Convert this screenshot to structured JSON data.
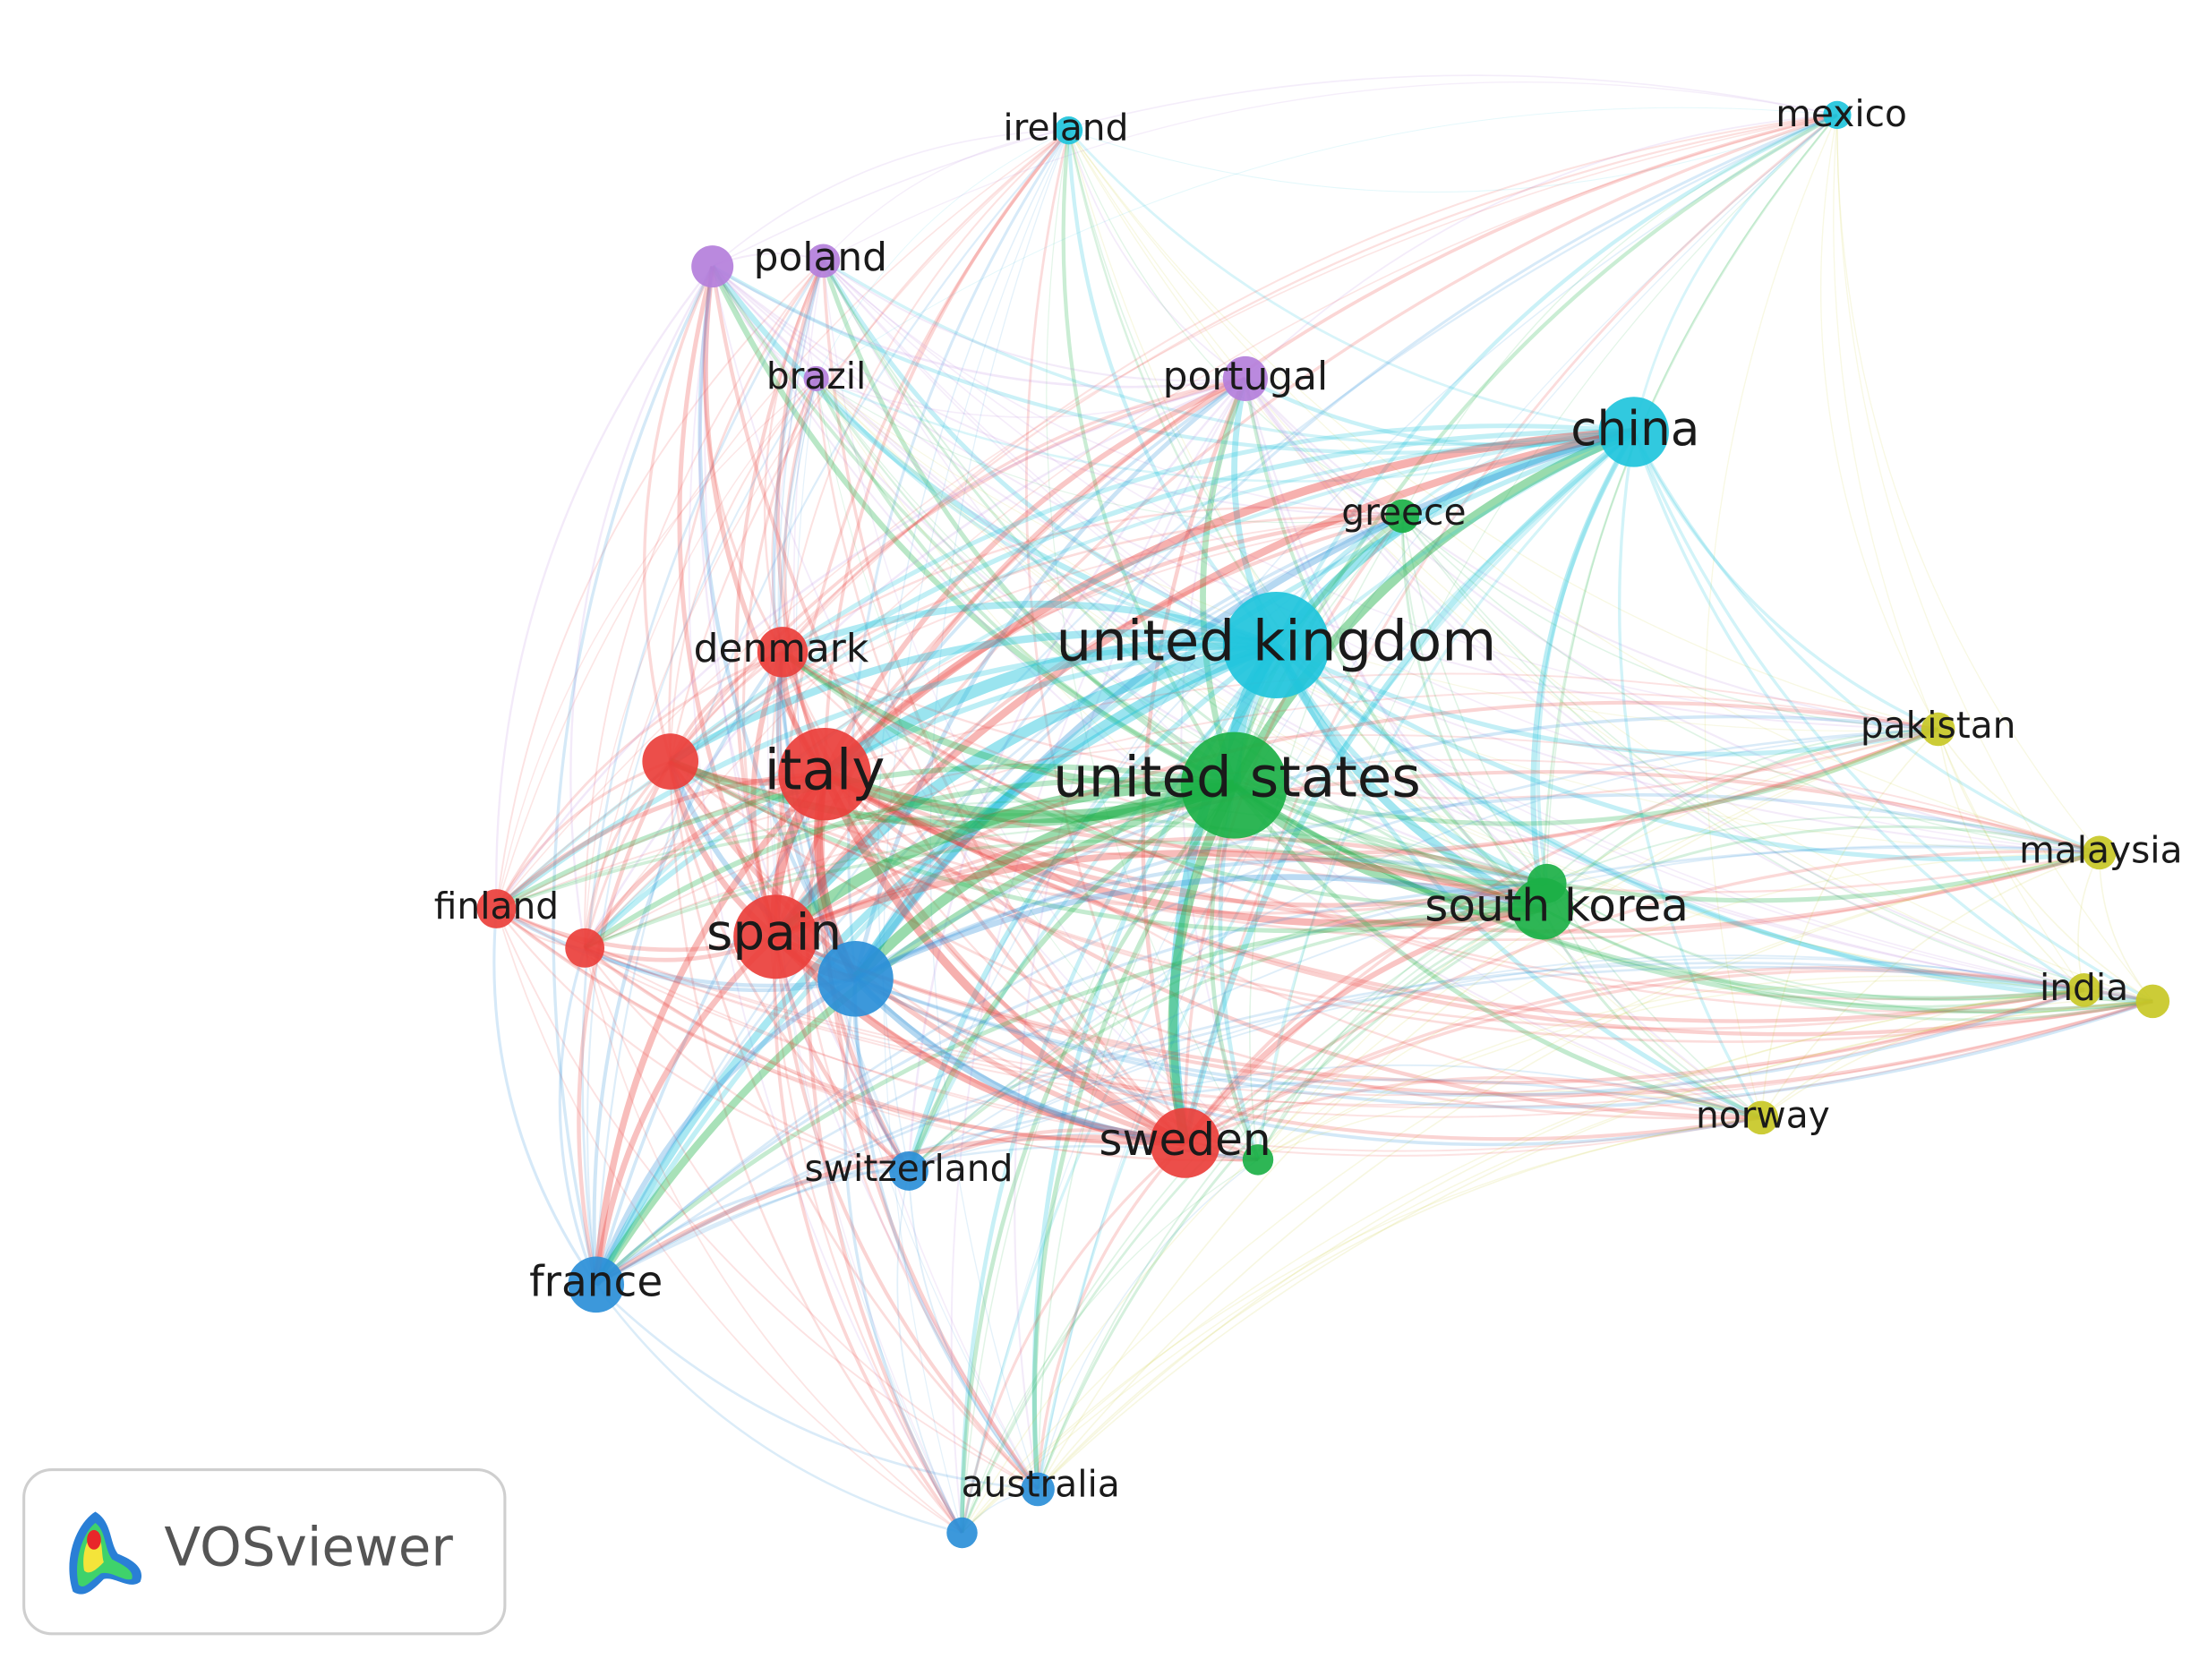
{
  "nodes": [
    {
      "label": "ireland"
    },
    {
      "label": "mexico"
    },
    {
      "label": "poland"
    },
    {
      "label": "brazil"
    },
    {
      "label": "portugal"
    },
    {
      "label": "china"
    },
    {
      "label": "greece"
    },
    {
      "label": "united kingdom"
    },
    {
      "label": "denmark"
    },
    {
      "label": "italy"
    },
    {
      "label": "united states"
    },
    {
      "label": "pakistan"
    },
    {
      "label": "malaysia"
    },
    {
      "label": "south korea"
    },
    {
      "label": "finland"
    },
    {
      "label": "spain"
    },
    {
      "label": "india"
    },
    {
      "label": "norway"
    },
    {
      "label": "sweden"
    },
    {
      "label": "switzerland"
    },
    {
      "label": "france"
    },
    {
      "label": "australia"
    }
  ],
  "logo": {
    "text": "VOSviewer"
  }
}
